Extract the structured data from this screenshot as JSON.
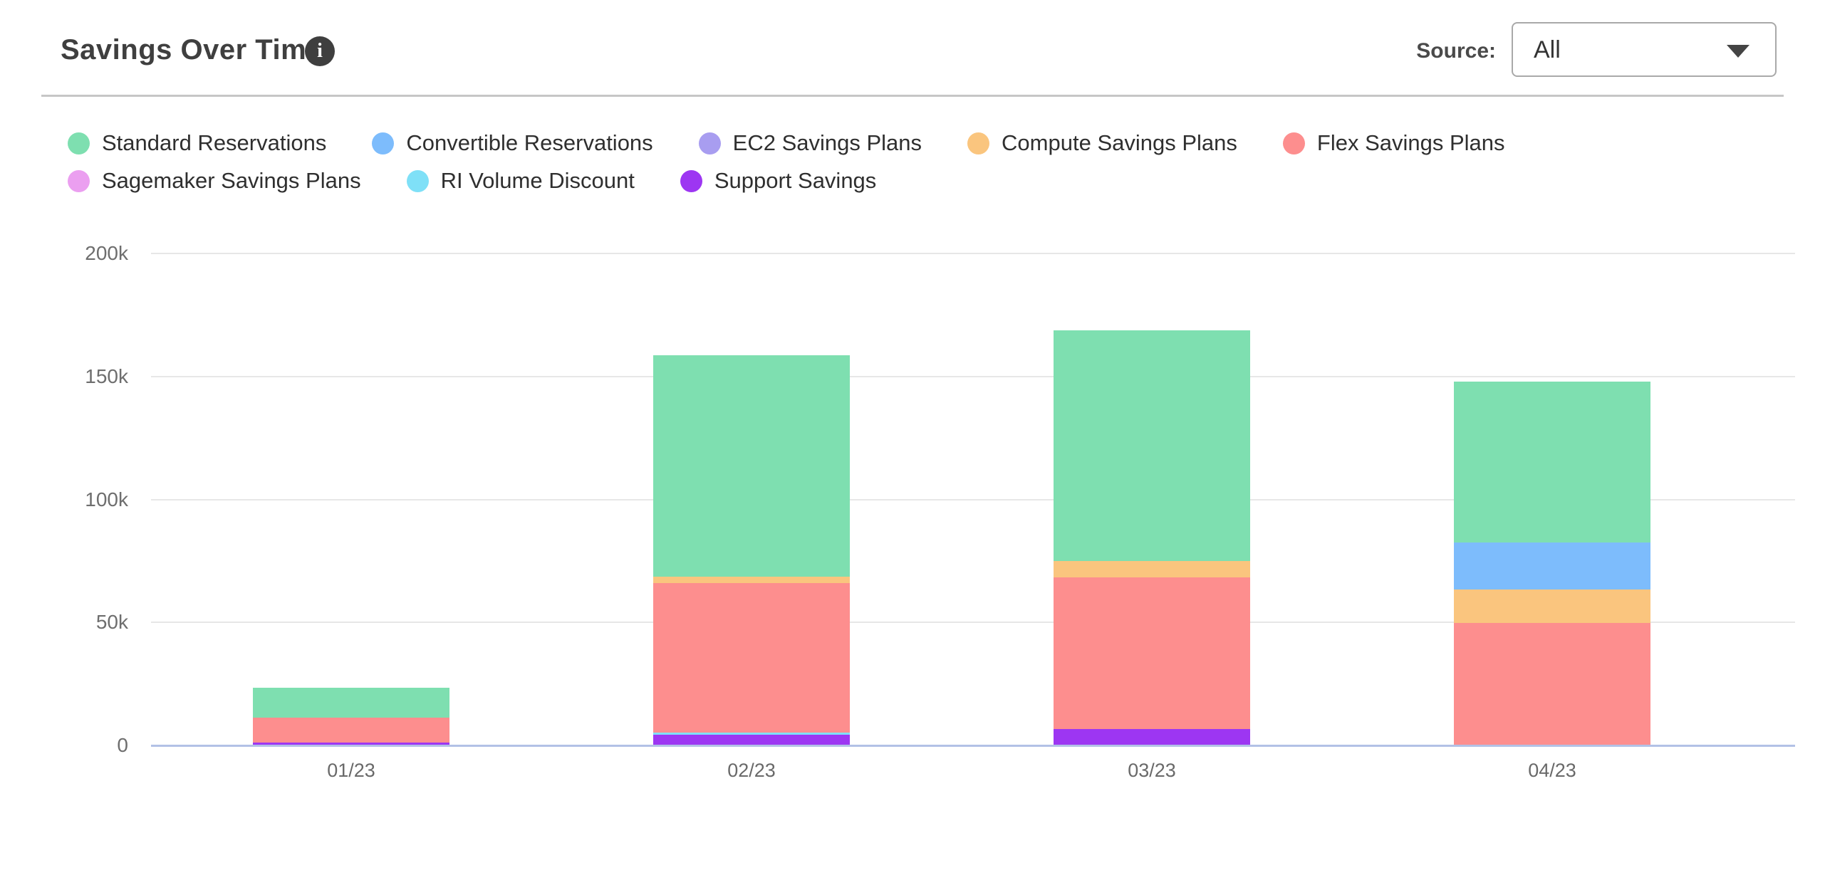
{
  "header": {
    "title": "Savings Over Time",
    "info_icon_glyph": "i",
    "source_label": "Source:",
    "source_value": "All"
  },
  "legend": {
    "row_split": [
      5,
      3
    ]
  },
  "chart_data": {
    "type": "bar",
    "stacked": true,
    "title": "Savings Over Time",
    "categories": [
      "01/23",
      "02/23",
      "03/23",
      "04/23"
    ],
    "series": [
      {
        "name": "Standard Reservations",
        "color": "#7EDFB0",
        "values": [
          12300,
          90200,
          93800,
          65500
        ]
      },
      {
        "name": "Convertible Reservations",
        "color": "#7DBCFC",
        "values": [
          0,
          0,
          0,
          19200
        ]
      },
      {
        "name": "EC2 Savings Plans",
        "color": "#A89DF0",
        "values": [
          0,
          0,
          0,
          0
        ]
      },
      {
        "name": "Compute Savings Plans",
        "color": "#FAC57E",
        "values": [
          0,
          2500,
          6500,
          13500
        ]
      },
      {
        "name": "Flex Savings Plans",
        "color": "#FD8E8E",
        "values": [
          10000,
          60900,
          61700,
          49800
        ]
      },
      {
        "name": "Sagemaker Savings Plans",
        "color": "#EB9FF0",
        "values": [
          0,
          0,
          0,
          0
        ]
      },
      {
        "name": "RI Volume Discount",
        "color": "#7FE0F7",
        "values": [
          0,
          900,
          0,
          0
        ]
      },
      {
        "name": "Support Savings",
        "color": "#9D36F2",
        "values": [
          1200,
          4200,
          6700,
          0
        ]
      }
    ],
    "stack_order_bottom_to_top": [
      "Support Savings",
      "RI Volume Discount",
      "Sagemaker Savings Plans",
      "Flex Savings Plans",
      "Compute Savings Plans",
      "EC2 Savings Plans",
      "Convertible Reservations",
      "Standard Reservations"
    ],
    "y_ticks": [
      {
        "value": 0,
        "label": "0"
      },
      {
        "value": 50000,
        "label": "50k"
      },
      {
        "value": 100000,
        "label": "100k"
      },
      {
        "value": 150000,
        "label": "150k"
      },
      {
        "value": 200000,
        "label": "200k"
      }
    ],
    "ylim": [
      0,
      200000
    ],
    "grid": true,
    "legend_position": "top-left",
    "colors": {
      "axis_baseline": "#B2C1E6",
      "gridline": "#E7E7E7",
      "tick_text": "#6E6E6E",
      "legend_text": "#2F2F2F"
    }
  }
}
